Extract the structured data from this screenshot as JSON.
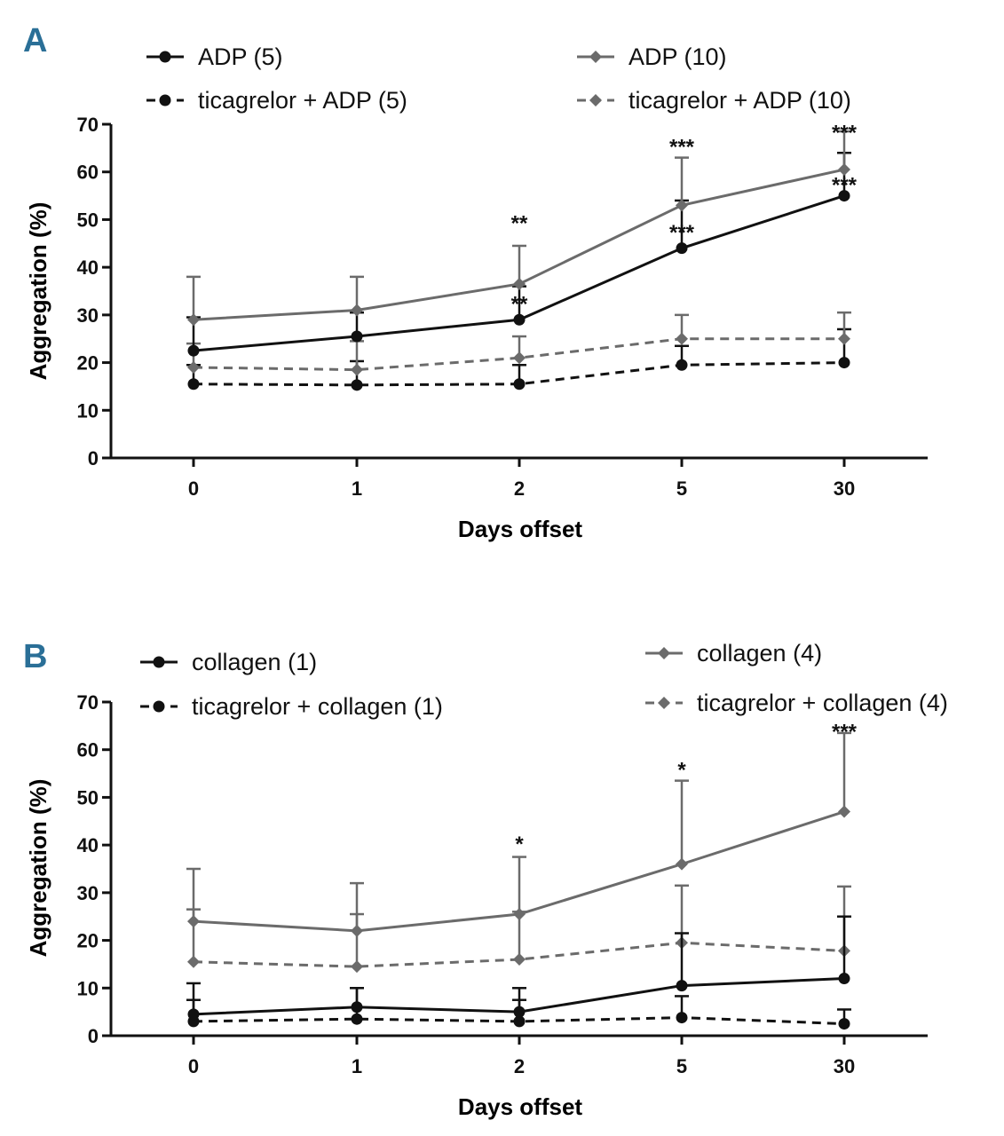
{
  "colors": {
    "black": "#111111",
    "gray": "#6b6b6b",
    "panel_letter": "#2a6f97"
  },
  "chart_data": [
    {
      "panel": "A",
      "type": "line",
      "xlabel": "Days offset",
      "ylabel": "Aggregation (%)",
      "categories": [
        "0",
        "1",
        "2",
        "5",
        "30"
      ],
      "ylim": [
        0,
        70
      ],
      "yticks": [
        "0",
        "10",
        "20",
        "30",
        "40",
        "50",
        "60",
        "70"
      ],
      "series": [
        {
          "name": "ADP (5)",
          "color": "black",
          "dashed": false,
          "marker": "circle",
          "values": [
            22.5,
            25.5,
            29,
            44,
            55
          ],
          "errors": [
            7,
            5,
            7,
            10,
            9
          ]
        },
        {
          "name": "ADP (10)",
          "color": "gray",
          "dashed": false,
          "marker": "diamond",
          "values": [
            29,
            31,
            36.5,
            53,
            60.5
          ],
          "errors": [
            9,
            7,
            8,
            10,
            8
          ]
        },
        {
          "name": "ticagrelor + ADP (5)",
          "color": "black",
          "dashed": true,
          "marker": "circle",
          "values": [
            15.5,
            15.3,
            15.5,
            19.5,
            20
          ],
          "errors": [
            4,
            5,
            4,
            4,
            7
          ]
        },
        {
          "name": "ticagrelor  + ADP (10)",
          "color": "gray",
          "dashed": true,
          "marker": "diamond",
          "values": [
            19,
            18.5,
            21,
            25,
            25
          ],
          "errors": [
            5,
            6,
            4.5,
            5,
            5.5
          ]
        }
      ],
      "annotations": [
        {
          "text": "**",
          "x": "2",
          "y": 50
        },
        {
          "text": "**",
          "x": "2",
          "y": 33
        },
        {
          "text": "***",
          "x": "5",
          "y": 66
        },
        {
          "text": "***",
          "x": "5",
          "y": 48
        },
        {
          "text": "***",
          "x": "30",
          "y": 69
        },
        {
          "text": "***",
          "x": "30",
          "y": 58
        }
      ]
    },
    {
      "panel": "B",
      "type": "line",
      "xlabel": "Days offset",
      "ylabel": "Aggregation (%)",
      "categories": [
        "0",
        "1",
        "2",
        "5",
        "30"
      ],
      "ylim": [
        0,
        70
      ],
      "yticks": [
        "0",
        "10",
        "20",
        "30",
        "40",
        "50",
        "60",
        "70"
      ],
      "series": [
        {
          "name": "collagen (1)",
          "color": "black",
          "dashed": false,
          "marker": "circle",
          "values": [
            4.5,
            6,
            5,
            10.5,
            12
          ],
          "errors": [
            6.5,
            4,
            5,
            11,
            13
          ]
        },
        {
          "name": "collagen (4)",
          "color": "gray",
          "dashed": false,
          "marker": "diamond",
          "values": [
            24,
            22,
            25.5,
            36,
            47
          ],
          "errors": [
            11,
            10,
            12,
            17.5,
            16.5
          ]
        },
        {
          "name": "ticagrelor + collagen (1)",
          "color": "black",
          "dashed": true,
          "marker": "circle",
          "values": [
            3,
            3.5,
            3,
            3.8,
            2.5
          ],
          "errors": [
            4.5,
            6.5,
            4.5,
            4.5,
            3
          ]
        },
        {
          "name": "ticagrelor + collagen (4)",
          "color": "gray",
          "dashed": true,
          "marker": "diamond",
          "values": [
            15.5,
            14.5,
            16,
            19.5,
            17.8
          ],
          "errors": [
            11,
            11,
            10,
            12,
            13.5
          ]
        }
      ],
      "annotations": [
        {
          "text": "*",
          "x": "2",
          "y": 41
        },
        {
          "text": "*",
          "x": "5",
          "y": 56.5
        },
        {
          "text": "***",
          "x": "30",
          "y": 64.5
        }
      ]
    }
  ]
}
